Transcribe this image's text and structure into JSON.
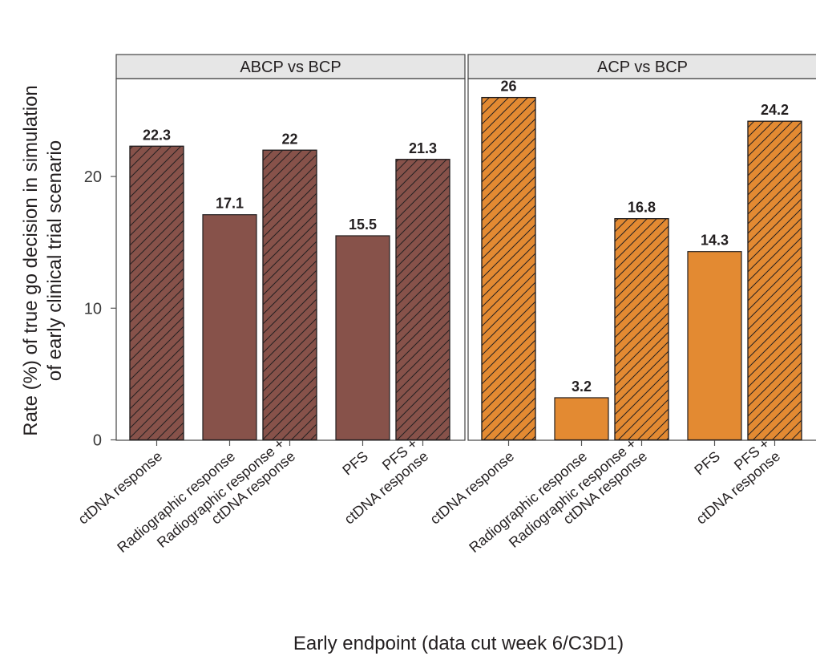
{
  "chart_data": {
    "type": "bar",
    "ylabel_lines": [
      "Rate (%) of true go decision in simulation",
      "of early clinical trial scenario"
    ],
    "xlabel": "Early endpoint (data cut week 6/C3D1)",
    "ylim": [
      0,
      27.5
    ],
    "yticks": [
      0,
      10,
      20
    ],
    "categories": [
      [
        "ctDNA response"
      ],
      [
        "Radiographic response"
      ],
      [
        "Radiographic response +",
        "ctDNA response"
      ],
      [
        "PFS"
      ],
      [
        "PFS +",
        "ctDNA response"
      ]
    ],
    "hatched": [
      true,
      false,
      true,
      false,
      true
    ],
    "panels": [
      {
        "title": "ABCP vs BCP",
        "color": "#87524a",
        "values": [
          22.3,
          17.1,
          22,
          15.5,
          21.3
        ],
        "value_labels": [
          "22.3",
          "17.1",
          "22",
          "15.5",
          "21.3"
        ]
      },
      {
        "title": "ACP vs BCP",
        "color": "#e38a32",
        "values": [
          26,
          3.2,
          16.8,
          14.3,
          24.2
        ],
        "value_labels": [
          "26",
          "3.2",
          "16.8",
          "14.3",
          "24.2"
        ]
      }
    ]
  }
}
